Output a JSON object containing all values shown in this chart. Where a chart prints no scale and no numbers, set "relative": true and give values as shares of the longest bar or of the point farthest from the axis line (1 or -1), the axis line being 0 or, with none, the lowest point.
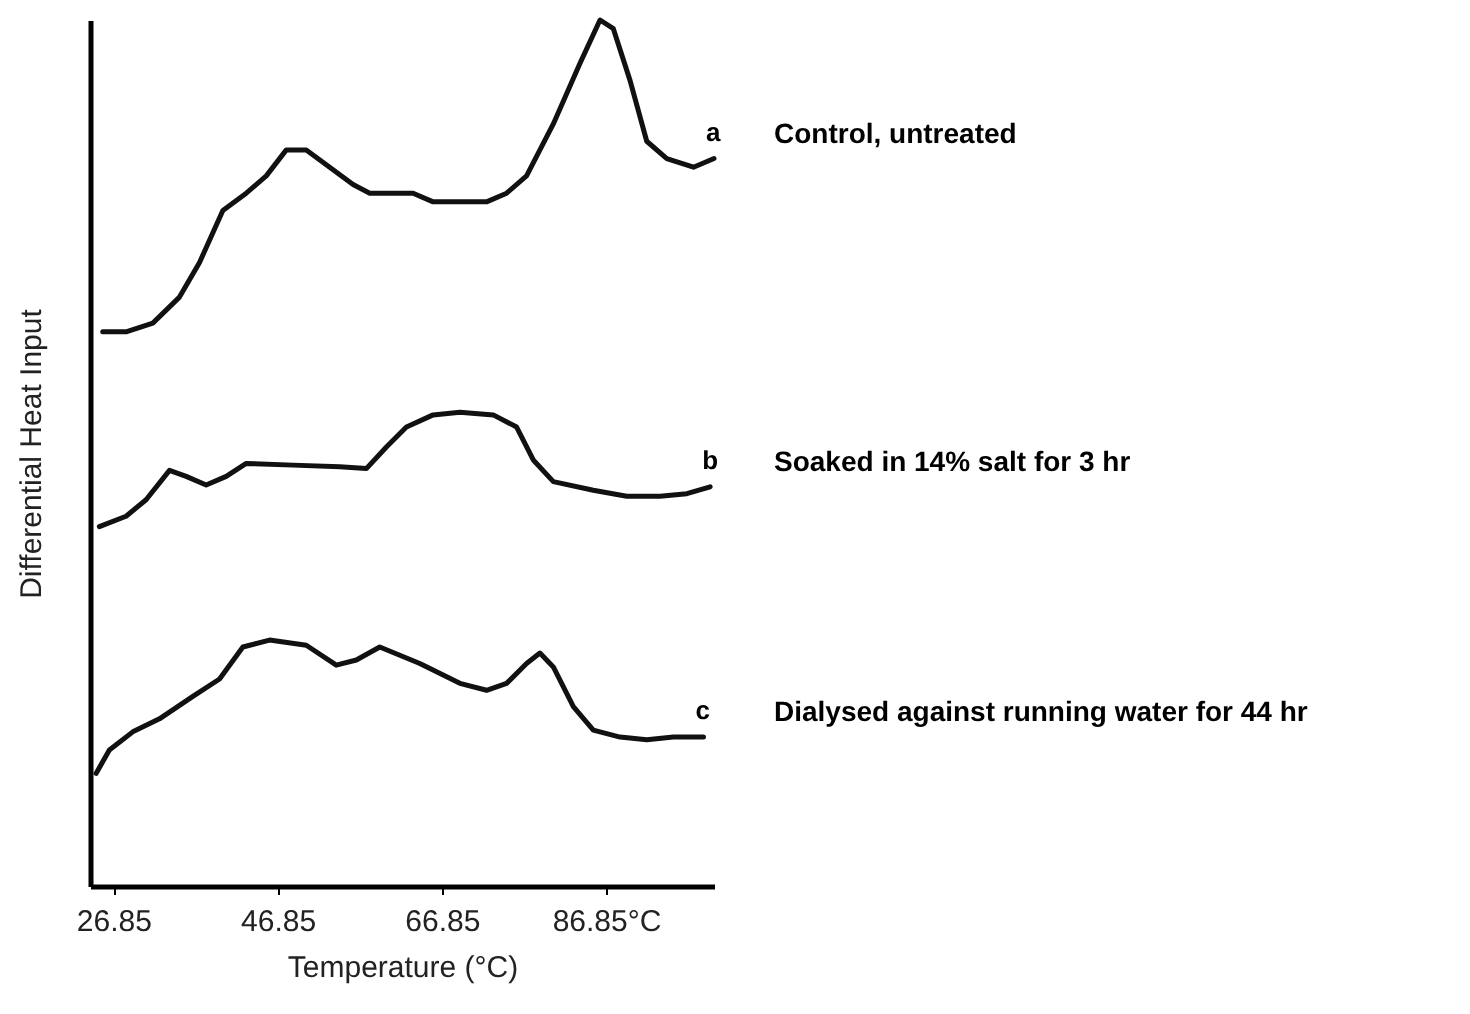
{
  "chart_data": {
    "type": "line",
    "relative": true,
    "xlabel": "Temperature (°C)",
    "ylabel": "Differential Heat Input",
    "xlim": [
      24,
      100
    ],
    "xticks": [
      26.85,
      46.85,
      66.85,
      {
        "value": 86.85,
        "label": "86.85°C"
      }
    ],
    "series": [
      {
        "name": "Control, untreated",
        "color": "#111111",
        "x": [
          25.55,
          28.39,
          31.65,
          34.9,
          37.34,
          40.18,
          43.03,
          45.47,
          47.91,
          50.34,
          53.19,
          56.04,
          58.07,
          60.92,
          63.35,
          65.79,
          69.05,
          72.3,
          74.74,
          77.17,
          80.43,
          83.68,
          86.12,
          87.74,
          89.78,
          91.81,
          94.25,
          97.5,
          100
        ],
        "values": [
          0.64,
          0.64,
          0.65,
          0.68,
          0.72,
          0.78,
          0.8,
          0.82,
          0.85,
          0.85,
          0.83,
          0.81,
          0.8,
          0.8,
          0.8,
          0.79,
          0.79,
          0.79,
          0.8,
          0.82,
          0.88,
          0.95,
          1.0,
          0.99,
          0.93,
          0.86,
          0.84,
          0.83,
          0.84
        ]
      },
      {
        "name": "Soaked in 14% salt for 3 hr",
        "color": "#111111",
        "x": [
          25.14,
          28.39,
          30.83,
          33.68,
          35.71,
          38.15,
          40.59,
          43.03,
          48.72,
          54.41,
          57.66,
          60.1,
          62.54,
          65.79,
          69.05,
          73.11,
          75.96,
          77.99,
          80.43,
          85.3,
          89.37,
          93.43,
          96.69,
          99.53
        ],
        "values": [
          0.415,
          0.427,
          0.446,
          0.48,
          0.473,
          0.463,
          0.473,
          0.488,
          0.486,
          0.484,
          0.482,
          0.507,
          0.53,
          0.544,
          0.547,
          0.544,
          0.53,
          0.492,
          0.467,
          0.457,
          0.45,
          0.45,
          0.453,
          0.461
        ]
      },
      {
        "name": "Dialysed against running water for 44 hr",
        "color": "#111111",
        "x": [
          24.74,
          26.36,
          29.21,
          32.46,
          36.53,
          39.78,
          42.62,
          45.87,
          50.34,
          54.0,
          56.44,
          59.29,
          64.17,
          69.05,
          72.3,
          74.74,
          77.17,
          78.8,
          80.43,
          82.87,
          85.3,
          88.56,
          91.81,
          95.06,
          98.72
        ],
        "values": [
          0.13,
          0.157,
          0.178,
          0.193,
          0.219,
          0.239,
          0.276,
          0.284,
          0.278,
          0.255,
          0.261,
          0.276,
          0.257,
          0.234,
          0.226,
          0.234,
          0.257,
          0.269,
          0.253,
          0.207,
          0.18,
          0.172,
          0.169,
          0.172,
          0.172
        ]
      }
    ],
    "annotations": [
      "a",
      "b",
      "c"
    ]
  }
}
